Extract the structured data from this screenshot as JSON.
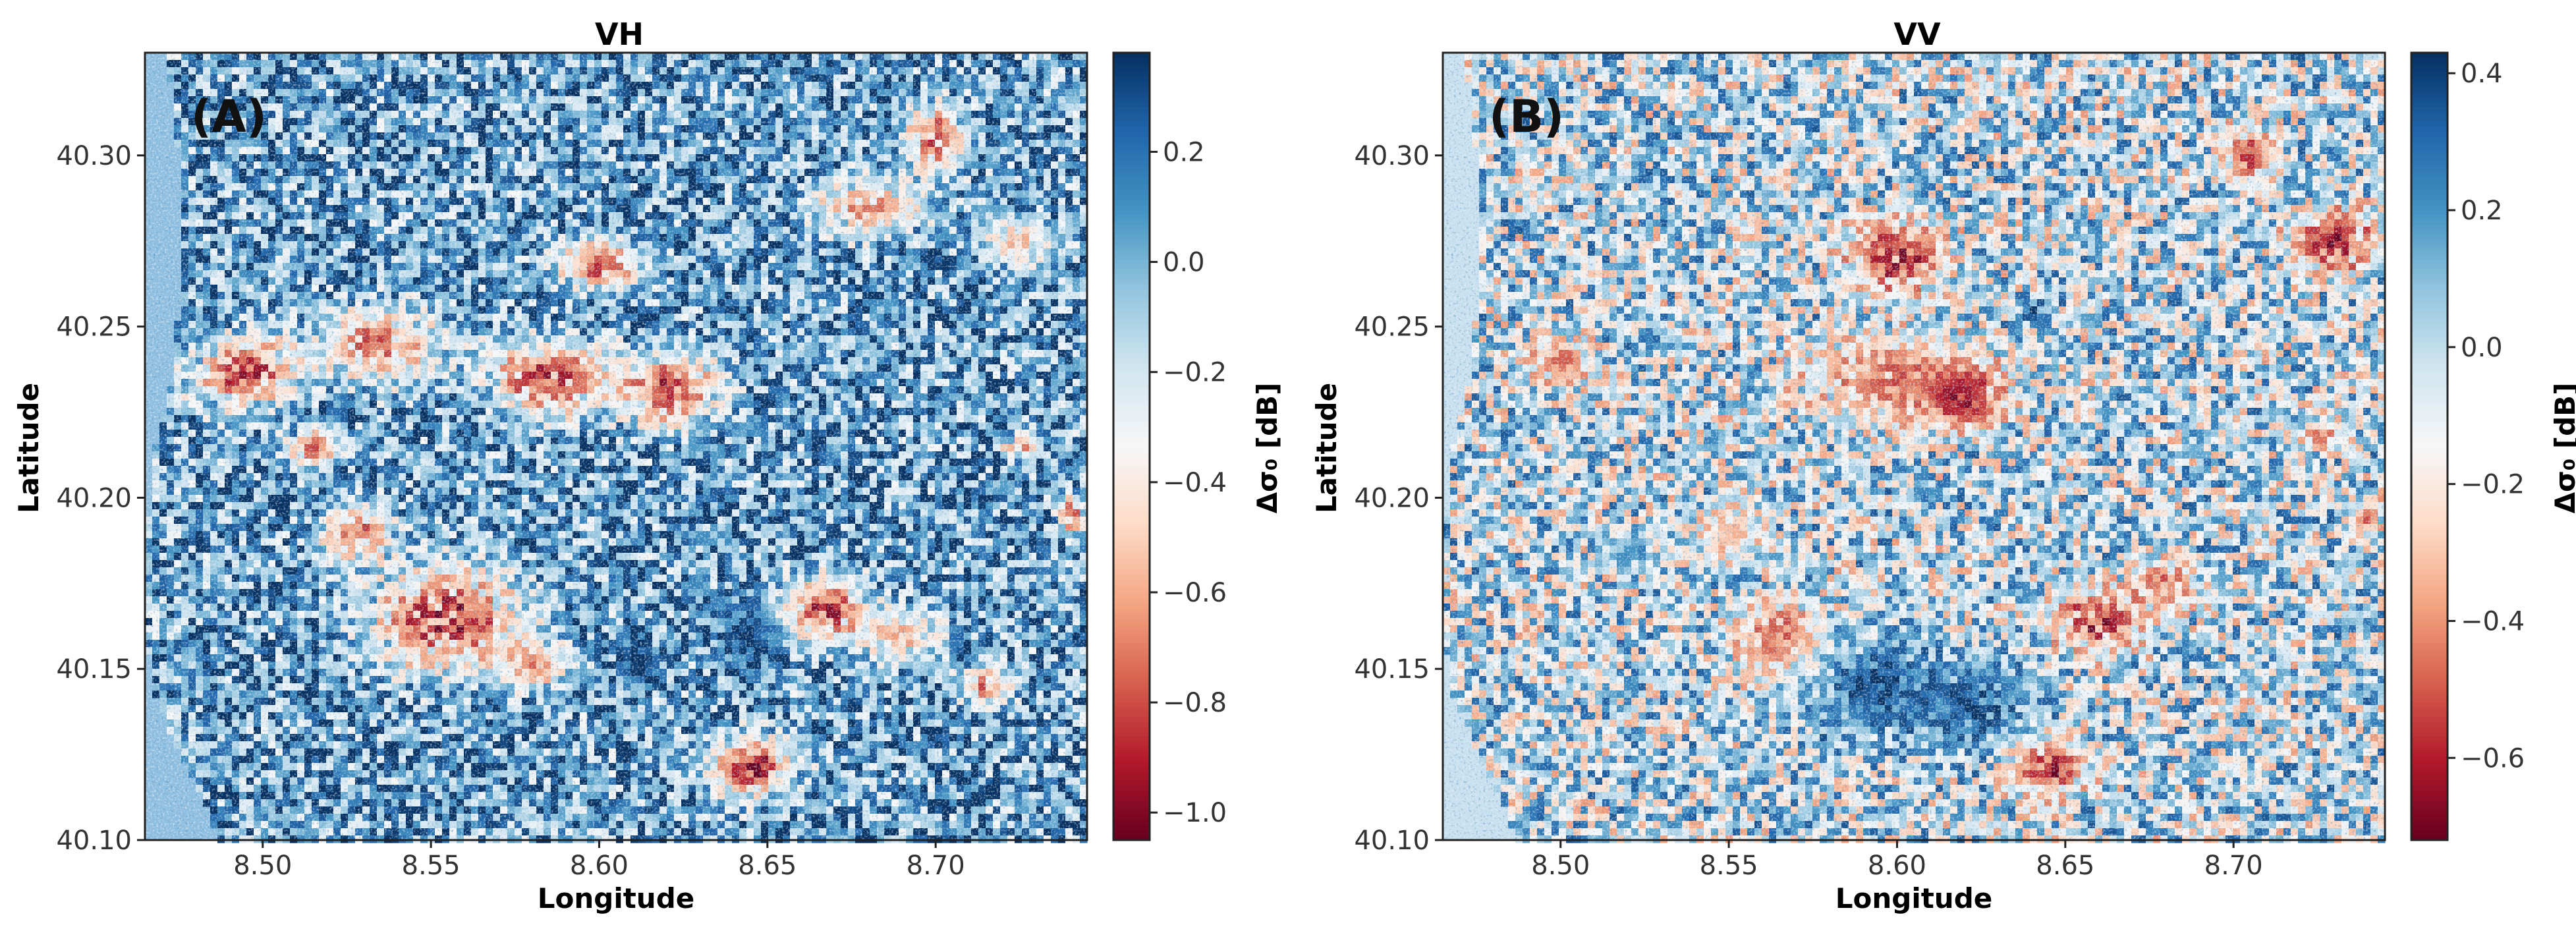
{
  "chart_data": [
    {
      "type": "heatmap",
      "title": "VH",
      "panel_label": "(A)",
      "xlabel": "Longitude",
      "ylabel": "Latitude",
      "colorbar_label": "Δσ₀ [dB]",
      "colormap": "RdBu",
      "xlim": [
        8.465,
        8.745
      ],
      "ylim": [
        40.1,
        40.33
      ],
      "xticks": [
        8.5,
        8.55,
        8.6,
        8.65,
        8.7
      ],
      "xtick_labels": [
        "8.50",
        "8.55",
        "8.60",
        "8.65",
        "8.70"
      ],
      "yticks": [
        40.1,
        40.15,
        40.2,
        40.25,
        40.3
      ],
      "ytick_labels": [
        "40.10",
        "40.15",
        "40.20",
        "40.25",
        "40.30"
      ],
      "color_range": [
        -1.05,
        0.38
      ],
      "colorbar_ticks": [
        0.2,
        0.0,
        -0.2,
        -0.4,
        -0.6,
        -0.8,
        -1.0
      ],
      "colorbar_tick_labels": [
        "0.2",
        "0.0",
        "−0.2",
        "−0.4",
        "−0.6",
        "−0.8",
        "−1.0"
      ],
      "background_mean": 0.08,
      "noise_amplitude": 0.42,
      "no_data_color": "#8fbfe0",
      "features": [
        {
          "lon": 8.495,
          "lat": 40.237,
          "rx": 0.018,
          "ry": 0.011,
          "value": -1.0
        },
        {
          "lon": 8.535,
          "lat": 40.245,
          "rx": 0.022,
          "ry": 0.012,
          "value": -0.85
        },
        {
          "lon": 8.515,
          "lat": 40.215,
          "rx": 0.008,
          "ry": 0.006,
          "value": -0.9
        },
        {
          "lon": 8.585,
          "lat": 40.235,
          "rx": 0.02,
          "ry": 0.012,
          "value": -1.0
        },
        {
          "lon": 8.62,
          "lat": 40.232,
          "rx": 0.018,
          "ry": 0.012,
          "value": -1.0
        },
        {
          "lon": 8.6,
          "lat": 40.268,
          "rx": 0.014,
          "ry": 0.008,
          "value": -0.9
        },
        {
          "lon": 8.528,
          "lat": 40.19,
          "rx": 0.012,
          "ry": 0.01,
          "value": -0.85
        },
        {
          "lon": 8.555,
          "lat": 40.165,
          "rx": 0.025,
          "ry": 0.017,
          "value": -1.05
        },
        {
          "lon": 8.58,
          "lat": 40.152,
          "rx": 0.012,
          "ry": 0.008,
          "value": -0.8
        },
        {
          "lon": 8.612,
          "lat": 40.152,
          "rx": 0.008,
          "ry": 0.008,
          "value": 0.38
        },
        {
          "lon": 8.645,
          "lat": 40.16,
          "rx": 0.01,
          "ry": 0.012,
          "value": 0.38
        },
        {
          "lon": 8.668,
          "lat": 40.168,
          "rx": 0.015,
          "ry": 0.011,
          "value": -1.0
        },
        {
          "lon": 8.69,
          "lat": 40.16,
          "rx": 0.012,
          "ry": 0.008,
          "value": -0.7
        },
        {
          "lon": 8.715,
          "lat": 40.145,
          "rx": 0.008,
          "ry": 0.007,
          "value": -0.85
        },
        {
          "lon": 8.645,
          "lat": 40.122,
          "rx": 0.014,
          "ry": 0.01,
          "value": -1.05
        },
        {
          "lon": 8.7,
          "lat": 40.305,
          "rx": 0.01,
          "ry": 0.012,
          "value": -0.9
        },
        {
          "lon": 8.68,
          "lat": 40.285,
          "rx": 0.018,
          "ry": 0.01,
          "value": -0.75
        },
        {
          "lon": 8.725,
          "lat": 40.275,
          "rx": 0.014,
          "ry": 0.008,
          "value": -0.6
        },
        {
          "lon": 8.74,
          "lat": 40.195,
          "rx": 0.004,
          "ry": 0.006,
          "value": -0.9
        },
        {
          "lon": 8.725,
          "lat": 40.215,
          "rx": 0.006,
          "ry": 0.004,
          "value": -0.8
        },
        {
          "lon": 8.64,
          "lat": 40.255,
          "rx": 0.004,
          "ry": 0.004,
          "value": 0.38
        }
      ]
    },
    {
      "type": "heatmap",
      "title": "VV",
      "panel_label": "(B)",
      "xlabel": "Longitude",
      "ylabel": "Latitude",
      "colorbar_label": "Δσ₀ [dB]",
      "colormap": "RdBu",
      "xlim": [
        8.465,
        8.745
      ],
      "ylim": [
        40.1,
        40.33
      ],
      "xticks": [
        8.5,
        8.55,
        8.6,
        8.65,
        8.7
      ],
      "xtick_labels": [
        "8.50",
        "8.55",
        "8.60",
        "8.65",
        "8.70"
      ],
      "yticks": [
        40.1,
        40.15,
        40.2,
        40.25,
        40.3
      ],
      "ytick_labels": [
        "40.10",
        "40.15",
        "40.20",
        "40.25",
        "40.30"
      ],
      "color_range": [
        -0.72,
        0.43
      ],
      "colorbar_ticks": [
        0.4,
        0.2,
        0.0,
        -0.2,
        -0.4,
        -0.6
      ],
      "colorbar_tick_labels": [
        "0.4",
        "0.2",
        "0.0",
        "−0.2",
        "−0.4",
        "−0.6"
      ],
      "background_mean": -0.02,
      "noise_amplitude": 0.38,
      "no_data_color": "#c8e0ef",
      "features": [
        {
          "lon": 8.6,
          "lat": 40.27,
          "rx": 0.016,
          "ry": 0.012,
          "value": -0.7
        },
        {
          "lon": 8.6,
          "lat": 40.235,
          "rx": 0.03,
          "ry": 0.014,
          "value": -0.55
        },
        {
          "lon": 8.62,
          "lat": 40.23,
          "rx": 0.012,
          "ry": 0.01,
          "value": -0.72
        },
        {
          "lon": 8.5,
          "lat": 40.24,
          "rx": 0.01,
          "ry": 0.008,
          "value": -0.5
        },
        {
          "lon": 8.595,
          "lat": 40.145,
          "rx": 0.025,
          "ry": 0.018,
          "value": 0.43
        },
        {
          "lon": 8.625,
          "lat": 40.14,
          "rx": 0.018,
          "ry": 0.014,
          "value": 0.43
        },
        {
          "lon": 8.565,
          "lat": 40.16,
          "rx": 0.014,
          "ry": 0.012,
          "value": -0.55
        },
        {
          "lon": 8.66,
          "lat": 40.165,
          "rx": 0.014,
          "ry": 0.01,
          "value": -0.72
        },
        {
          "lon": 8.645,
          "lat": 40.122,
          "rx": 0.012,
          "ry": 0.009,
          "value": -0.72
        },
        {
          "lon": 8.68,
          "lat": 40.175,
          "rx": 0.01,
          "ry": 0.008,
          "value": -0.55
        },
        {
          "lon": 8.73,
          "lat": 40.275,
          "rx": 0.014,
          "ry": 0.01,
          "value": -0.72
        },
        {
          "lon": 8.705,
          "lat": 40.3,
          "rx": 0.008,
          "ry": 0.01,
          "value": -0.6
        },
        {
          "lon": 8.725,
          "lat": 40.218,
          "rx": 0.006,
          "ry": 0.004,
          "value": -0.6
        },
        {
          "lon": 8.74,
          "lat": 40.195,
          "rx": 0.004,
          "ry": 0.005,
          "value": -0.6
        },
        {
          "lon": 8.64,
          "lat": 40.255,
          "rx": 0.004,
          "ry": 0.004,
          "value": 0.43
        },
        {
          "lon": 8.52,
          "lat": 40.185,
          "rx": 0.008,
          "ry": 0.006,
          "value": 0.2
        },
        {
          "lon": 8.55,
          "lat": 40.19,
          "rx": 0.01,
          "ry": 0.008,
          "value": -0.35
        }
      ]
    }
  ]
}
